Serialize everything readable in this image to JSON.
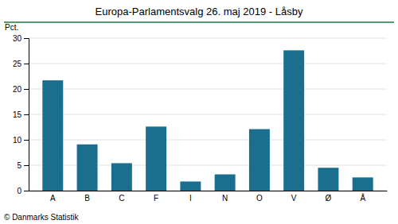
{
  "chart_data": {
    "type": "bar",
    "title": "Europa-Parlamentsvalg 26. maj 2019 - Låsby",
    "categories": [
      "A",
      "B",
      "C",
      "F",
      "I",
      "N",
      "O",
      "V",
      "Ø",
      "Å"
    ],
    "values": [
      21.7,
      9.1,
      5.4,
      12.6,
      1.8,
      3.2,
      12.1,
      27.6,
      4.5,
      2.6
    ],
    "color": "#1a6e8e",
    "ylabel": "Pct.",
    "footer": "© Danmarks Statistik",
    "ylim": [
      0,
      30
    ],
    "yticks": [
      0,
      5,
      10,
      15,
      20,
      25,
      30
    ],
    "grid": true
  }
}
